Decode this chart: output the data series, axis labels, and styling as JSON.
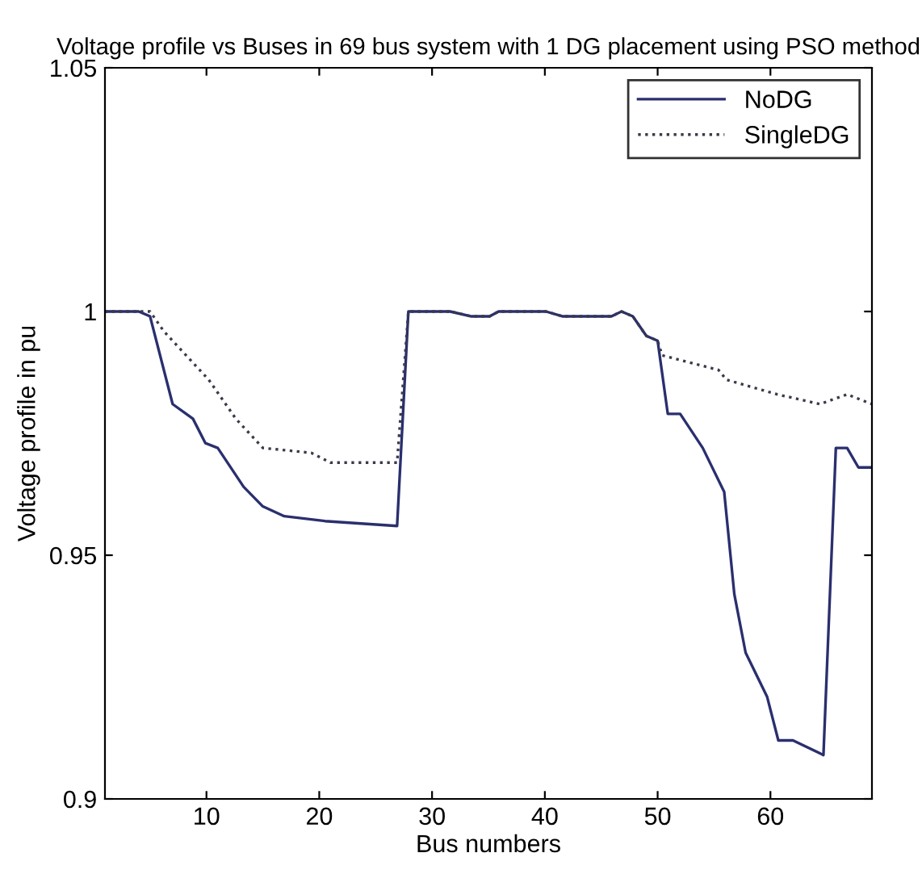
{
  "chart_data": {
    "type": "line",
    "title": "Voltage profile vs Buses in 69 bus system with 1 DG placement using PSO method",
    "xlabel": "Bus numbers",
    "ylabel": "Voltage profile in pu",
    "xlim": [
      1,
      69
    ],
    "xticks": [
      10,
      20,
      30,
      40,
      50,
      60
    ],
    "ylim": [
      0.9,
      1.05
    ],
    "yticks": [
      0.9,
      0.95,
      1,
      1.05
    ],
    "grid": false,
    "legend": "top right",
    "series": [
      {
        "name": "NoDG",
        "color": "#2a2f6e",
        "line_style": "solid",
        "x": [
          1,
          4,
          5,
          7,
          8.8,
          9.9,
          11,
          13.3,
          15,
          16.9,
          20.5,
          26.9,
          27.9,
          31.6,
          33.5,
          35.1,
          35.9,
          38.2,
          40.1,
          41.6,
          45.9,
          46.8,
          47.8,
          49,
          50,
          50.9,
          52,
          54,
          55.9,
          56.8,
          57.8,
          59.7,
          60.7,
          62,
          64.7,
          65.8,
          66.8,
          67.8,
          69
        ],
        "values": [
          1.0,
          1.0,
          0.999,
          0.981,
          0.978,
          0.973,
          0.972,
          0.964,
          0.96,
          0.958,
          0.957,
          0.956,
          1.0,
          1.0,
          0.999,
          0.999,
          1.0,
          1.0,
          1.0,
          0.999,
          0.999,
          1.0,
          0.999,
          0.995,
          0.994,
          0.979,
          0.979,
          0.972,
          0.963,
          0.942,
          0.93,
          0.921,
          0.912,
          0.912,
          0.909,
          0.972,
          0.972,
          0.968,
          0.968
        ]
      },
      {
        "name": "SingleDG",
        "color": "#3a3a4a",
        "line_style": "dotted",
        "x": [
          1,
          4,
          5,
          6.2,
          8.6,
          10.2,
          12.6,
          15,
          19.3,
          21,
          26.9,
          27.9,
          31.6,
          33.5,
          35.1,
          35.9,
          38.2,
          40.1,
          41.6,
          45.9,
          46.8,
          47.8,
          49,
          50,
          50.4,
          55.4,
          56.1,
          60.6,
          64.4,
          66.8,
          69
        ],
        "values": [
          1.0,
          1.0,
          1.0,
          0.996,
          0.99,
          0.986,
          0.978,
          0.972,
          0.971,
          0.969,
          0.969,
          1.0,
          1.0,
          0.999,
          0.999,
          1.0,
          1.0,
          1.0,
          0.999,
          0.999,
          1.0,
          0.999,
          0.995,
          0.994,
          0.991,
          0.988,
          0.986,
          0.983,
          0.981,
          0.983,
          0.981
        ]
      }
    ]
  }
}
